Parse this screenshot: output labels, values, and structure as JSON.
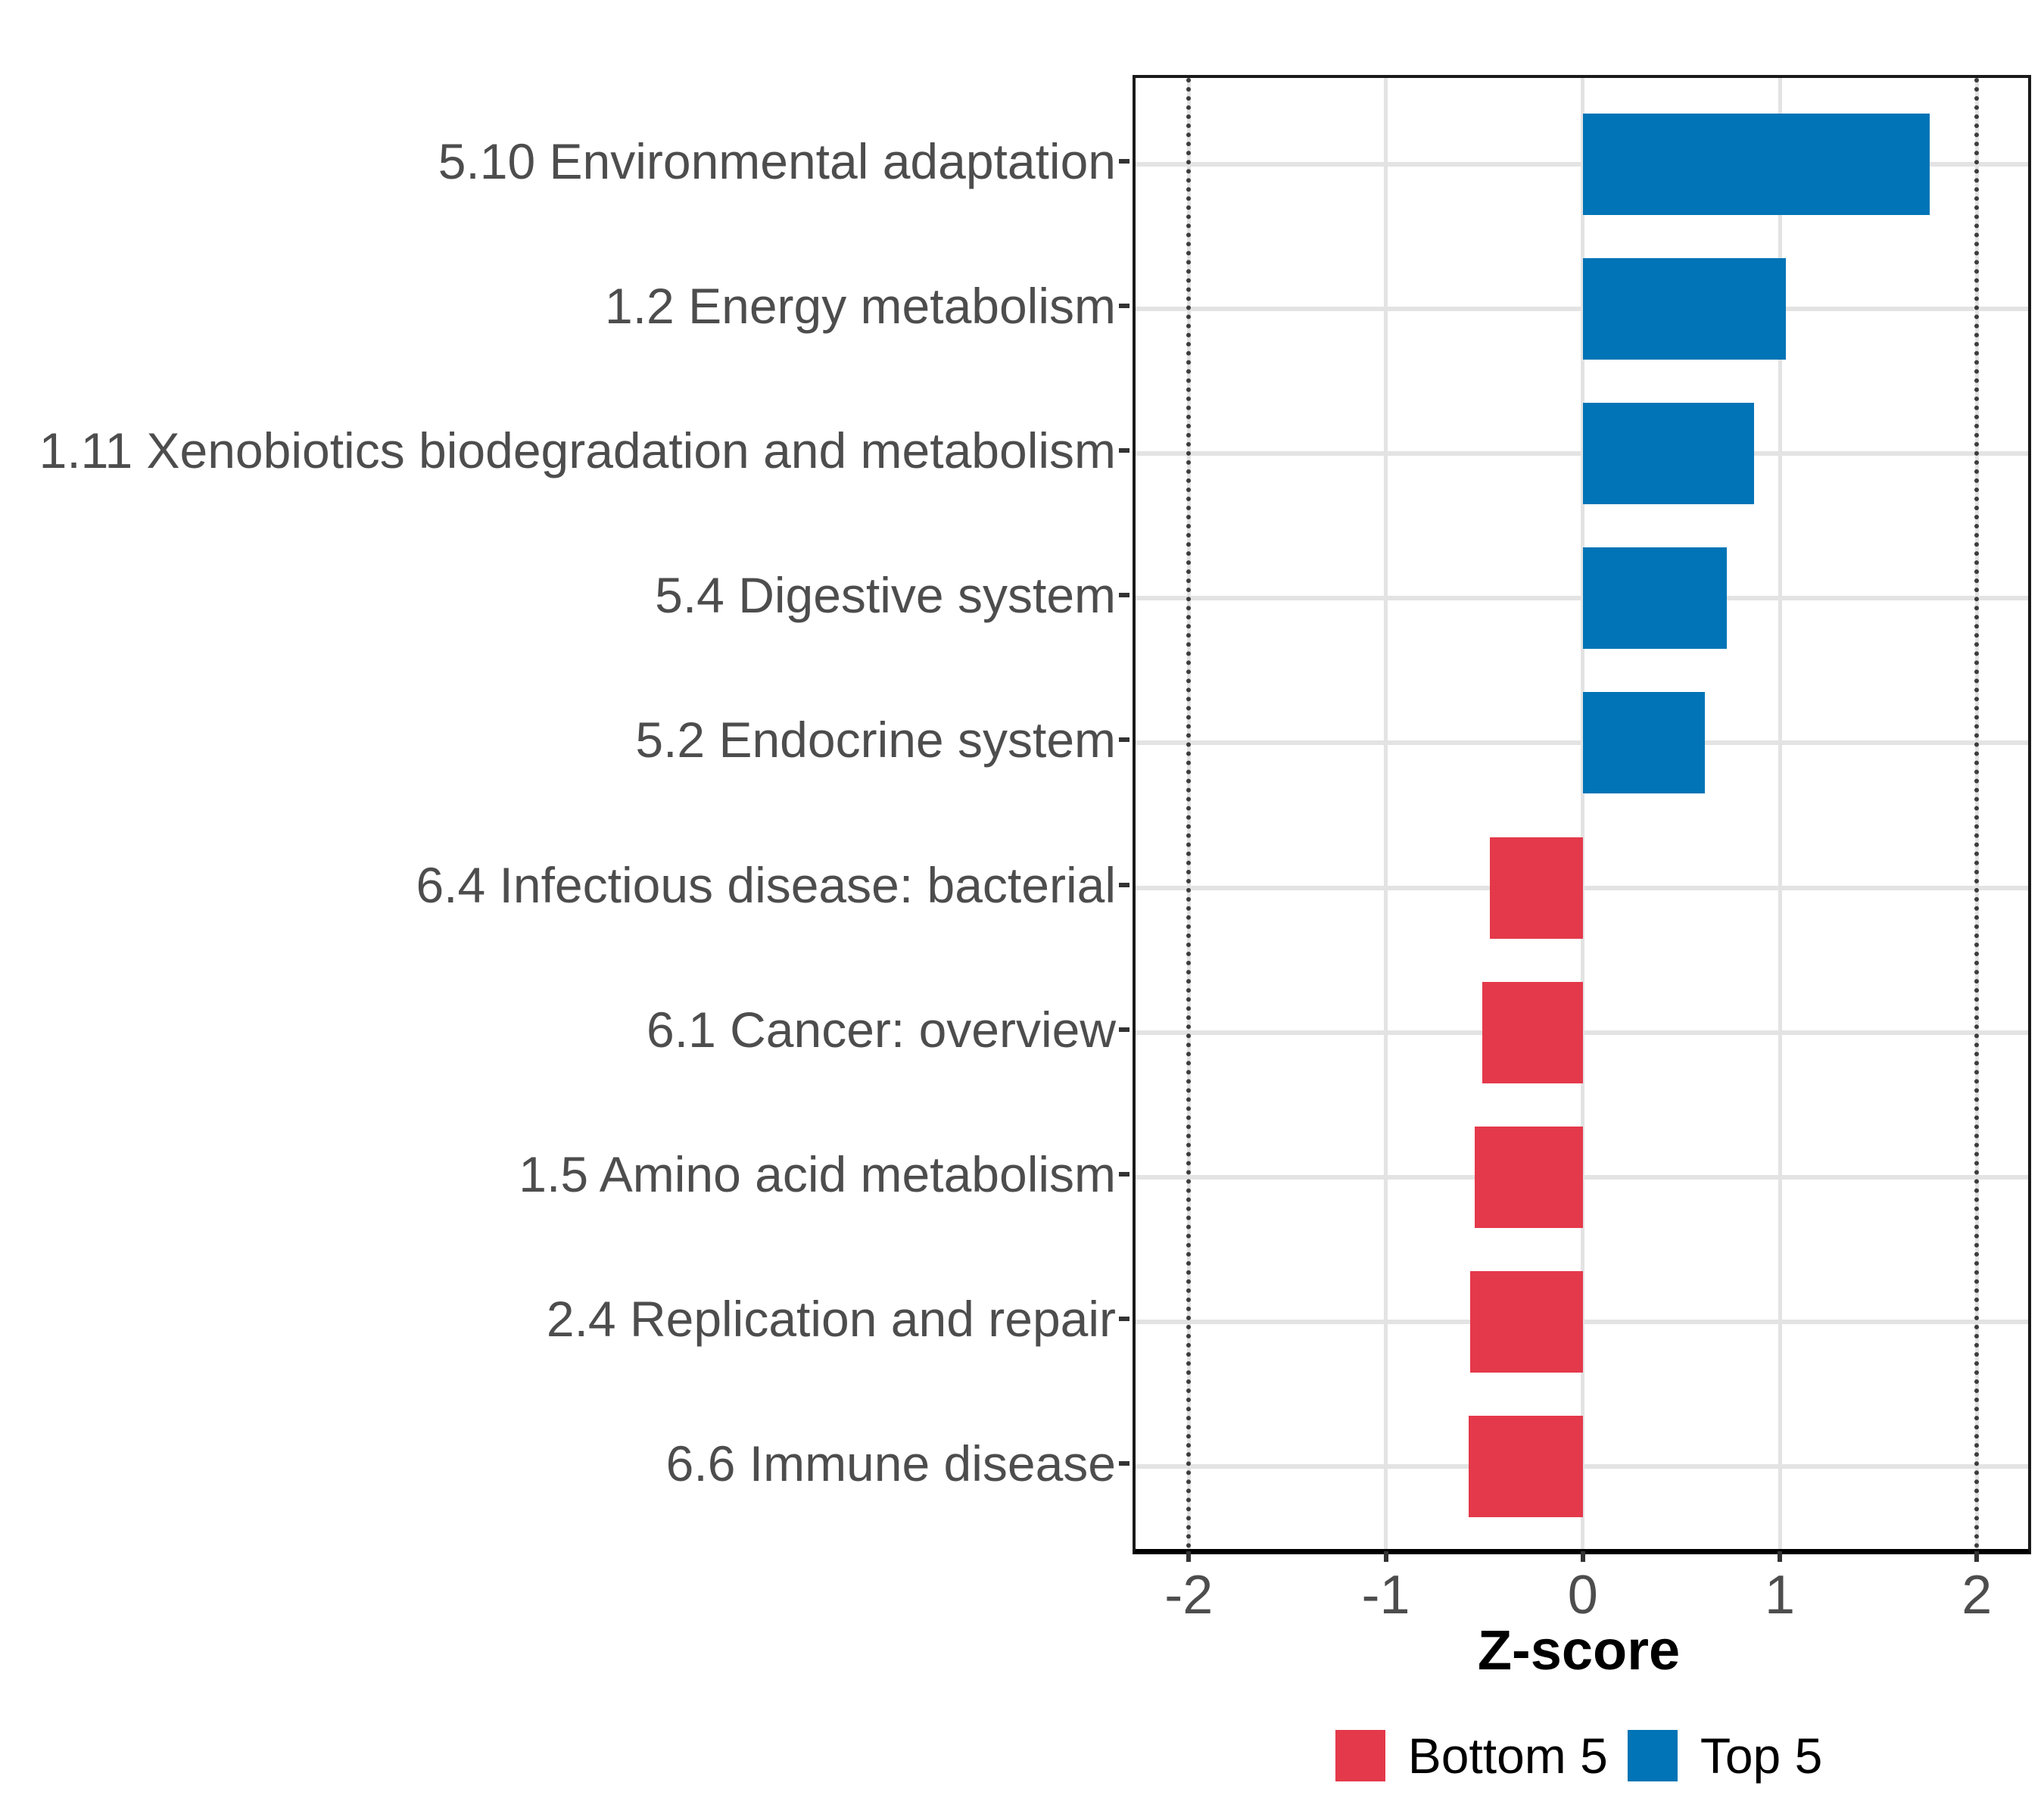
{
  "chart_data": {
    "type": "bar",
    "orientation": "horizontal",
    "xlabel": "Z-score",
    "categories": [
      "5.10 Environmental adaptation",
      "1.2 Energy metabolism",
      "1.11 Xenobiotics biodegradation and metabolism",
      "5.4 Digestive system",
      "5.2 Endocrine system",
      "6.4 Infectious disease: bacterial",
      "6.1 Cancer: overview",
      "1.5 Amino acid metabolism",
      "2.4 Replication and repair",
      "6.6 Immune disease"
    ],
    "values": [
      1.76,
      1.03,
      0.87,
      0.73,
      0.62,
      -0.47,
      -0.51,
      -0.55,
      -0.57,
      -0.58
    ],
    "groups": [
      "Top 5",
      "Top 5",
      "Top 5",
      "Top 5",
      "Top 5",
      "Bottom 5",
      "Bottom 5",
      "Bottom 5",
      "Bottom 5",
      "Bottom 5"
    ],
    "x_ticks": [
      -2,
      -1,
      0,
      1,
      2
    ],
    "x_tick_labels": [
      "-2",
      "-1",
      "0",
      "1",
      "2"
    ],
    "xlim": [
      -2.27,
      2.26
    ],
    "reference_lines": [
      -2,
      2
    ],
    "grid": true,
    "legend_position": "bottom",
    "legend": [
      {
        "label": "Bottom 5",
        "color": "#E4394A"
      },
      {
        "label": "Top 5",
        "color": "#0074B6"
      }
    ],
    "colors": {
      "top_5": "#0074B6",
      "bottom_5": "#E4394A"
    }
  }
}
